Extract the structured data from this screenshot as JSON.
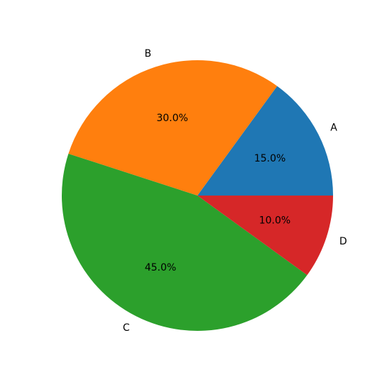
{
  "chart_data": {
    "type": "pie",
    "categories": [
      "A",
      "B",
      "C",
      "D"
    ],
    "values": [
      15,
      30,
      45,
      10
    ],
    "value_labels": [
      "15.0%",
      "30.0%",
      "45.0%",
      "10.0%"
    ],
    "colors": [
      "#1f77b4",
      "#ff7f0e",
      "#2ca02c",
      "#d62728"
    ]
  }
}
